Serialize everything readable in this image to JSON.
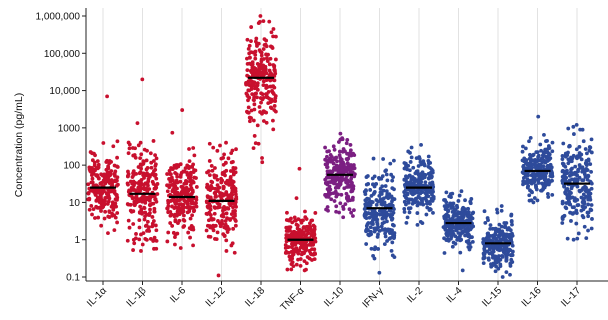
{
  "chart_data": {
    "type": "scatter",
    "title": "",
    "xlabel": "",
    "ylabel": "Concentration (pg/mL)",
    "yscale": "log",
    "ylim": [
      0.07,
      1000000
    ],
    "yticks": [
      {
        "value": 0.1,
        "label": "0.1"
      },
      {
        "value": 1,
        "label": "1"
      },
      {
        "value": 10,
        "label": "10"
      },
      {
        "value": 100,
        "label": "100"
      },
      {
        "value": 1000,
        "label": "1000"
      },
      {
        "value": 10000,
        "label": "10,000"
      },
      {
        "value": 100000,
        "label": "100,000"
      },
      {
        "value": 1000000,
        "label": "1,000,000"
      }
    ],
    "grid": {
      "vertical": true,
      "horizontal": false
    },
    "legend": "none",
    "categories": [
      {
        "label": "IL-1α",
        "median": 25,
        "min": 1.5,
        "max": 7000,
        "color": "#c8102e"
      },
      {
        "label": "IL-1β",
        "median": 17,
        "min": 0.5,
        "max": 20000,
        "color": "#c8102e"
      },
      {
        "label": "IL-6",
        "median": 14,
        "min": 0.6,
        "max": 3000,
        "color": "#c8102e"
      },
      {
        "label": "IL-12",
        "median": 11,
        "min": 0.11,
        "max": 400,
        "color": "#c8102e"
      },
      {
        "label": "IL-18",
        "median": 22000,
        "min": 120,
        "max": 1000000,
        "color": "#c8102e"
      },
      {
        "label": "TNF-α",
        "median": 1.0,
        "min": 0.15,
        "max": 80,
        "color": "#c8102e"
      },
      {
        "label": "IL-10",
        "median": 55,
        "min": 4,
        "max": 700,
        "color": "#7b1f82"
      },
      {
        "label": "IFN-γ",
        "median": 7,
        "min": 0.13,
        "max": 150,
        "color": "#2e4b9b"
      },
      {
        "label": "IL-2",
        "median": 25,
        "min": 2.5,
        "max": 350,
        "color": "#2e4b9b"
      },
      {
        "label": "IL-4",
        "median": 2.8,
        "min": 0.15,
        "max": 20,
        "color": "#2e4b9b"
      },
      {
        "label": "IL-15",
        "median": 0.8,
        "min": 0.1,
        "max": 8,
        "color": "#2e4b9b"
      },
      {
        "label": "IL-16",
        "median": 70,
        "min": 10,
        "max": 2000,
        "color": "#2e4b9b"
      },
      {
        "label": "IL-17",
        "median": 32,
        "min": 1.0,
        "max": 1200,
        "color": "#2e4b9b"
      }
    ]
  }
}
